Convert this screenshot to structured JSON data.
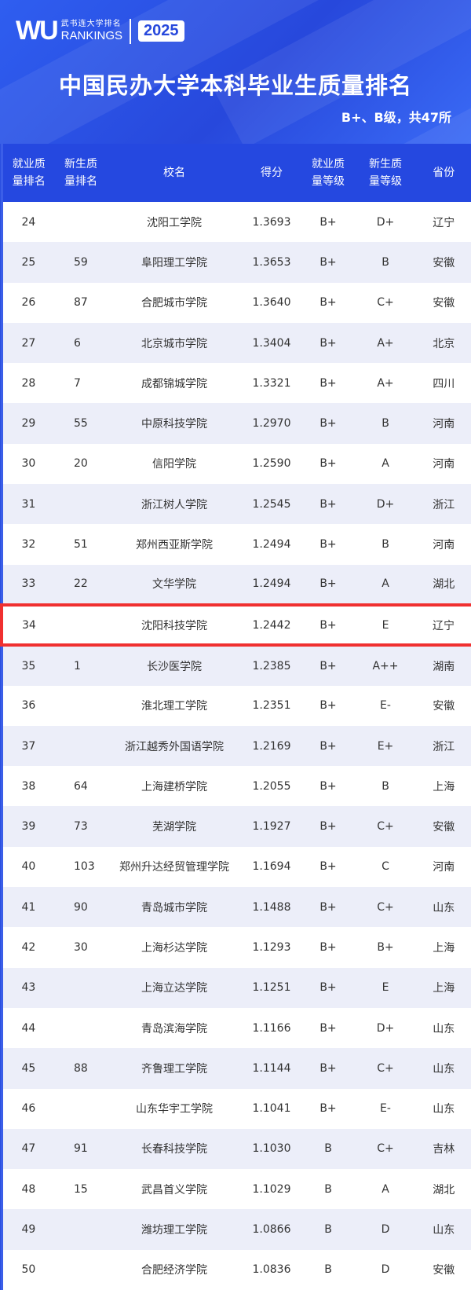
{
  "header": {
    "logo_mark": "WU",
    "logo_cn": "武书连大学排名",
    "logo_en": "RANKINGS",
    "year": "2025",
    "title": "中国民办大学本科毕业生质量排名",
    "subtitle": "B+、B级，共47所"
  },
  "colors": {
    "brand": "#2548e0",
    "highlight": "#f03030",
    "row_alt": "#eceef9"
  },
  "table": {
    "columns": [
      "就业质\n量排名",
      "新生质\n量排名",
      "校名",
      "得分",
      "就业质\n量等级",
      "新生质\n量等级",
      "省份"
    ],
    "highlight_rank": "34",
    "rows": [
      [
        "24",
        "",
        "沈阳工学院",
        "1.3693",
        "B+",
        "D+",
        "辽宁"
      ],
      [
        "25",
        "59",
        "阜阳理工学院",
        "1.3653",
        "B+",
        "B",
        "安徽"
      ],
      [
        "26",
        "87",
        "合肥城市学院",
        "1.3640",
        "B+",
        "C+",
        "安徽"
      ],
      [
        "27",
        "6",
        "北京城市学院",
        "1.3404",
        "B+",
        "A+",
        "北京"
      ],
      [
        "28",
        "7",
        "成都锦城学院",
        "1.3321",
        "B+",
        "A+",
        "四川"
      ],
      [
        "29",
        "55",
        "中原科技学院",
        "1.2970",
        "B+",
        "B",
        "河南"
      ],
      [
        "30",
        "20",
        "信阳学院",
        "1.2590",
        "B+",
        "A",
        "河南"
      ],
      [
        "31",
        "",
        "浙江树人学院",
        "1.2545",
        "B+",
        "D+",
        "浙江"
      ],
      [
        "32",
        "51",
        "郑州西亚斯学院",
        "1.2494",
        "B+",
        "B",
        "河南"
      ],
      [
        "33",
        "22",
        "文华学院",
        "1.2494",
        "B+",
        "A",
        "湖北"
      ],
      [
        "34",
        "",
        "沈阳科技学院",
        "1.2442",
        "B+",
        "E",
        "辽宁"
      ],
      [
        "35",
        "1",
        "长沙医学院",
        "1.2385",
        "B+",
        "A++",
        "湖南"
      ],
      [
        "36",
        "",
        "淮北理工学院",
        "1.2351",
        "B+",
        "E-",
        "安徽"
      ],
      [
        "37",
        "",
        "浙江越秀外国语学院",
        "1.2169",
        "B+",
        "E+",
        "浙江"
      ],
      [
        "38",
        "64",
        "上海建桥学院",
        "1.2055",
        "B+",
        "B",
        "上海"
      ],
      [
        "39",
        "73",
        "芜湖学院",
        "1.1927",
        "B+",
        "C+",
        "安徽"
      ],
      [
        "40",
        "103",
        "郑州升达经贸管理学院",
        "1.1694",
        "B+",
        "C",
        "河南"
      ],
      [
        "41",
        "90",
        "青岛城市学院",
        "1.1488",
        "B+",
        "C+",
        "山东"
      ],
      [
        "42",
        "30",
        "上海杉达学院",
        "1.1293",
        "B+",
        "B+",
        "上海"
      ],
      [
        "43",
        "",
        "上海立达学院",
        "1.1251",
        "B+",
        "E",
        "上海"
      ],
      [
        "44",
        "",
        "青岛滨海学院",
        "1.1166",
        "B+",
        "D+",
        "山东"
      ],
      [
        "45",
        "88",
        "齐鲁理工学院",
        "1.1144",
        "B+",
        "C+",
        "山东"
      ],
      [
        "46",
        "",
        "山东华宇工学院",
        "1.1041",
        "B+",
        "E-",
        "山东"
      ],
      [
        "47",
        "91",
        "长春科技学院",
        "1.1030",
        "B",
        "C+",
        "吉林"
      ],
      [
        "48",
        "15",
        "武昌首义学院",
        "1.1029",
        "B",
        "A",
        "湖北"
      ],
      [
        "49",
        "",
        "潍坊理工学院",
        "1.0866",
        "B",
        "D",
        "山东"
      ],
      [
        "50",
        "",
        "合肥经济学院",
        "1.0836",
        "B",
        "D",
        "安徽"
      ]
    ]
  }
}
